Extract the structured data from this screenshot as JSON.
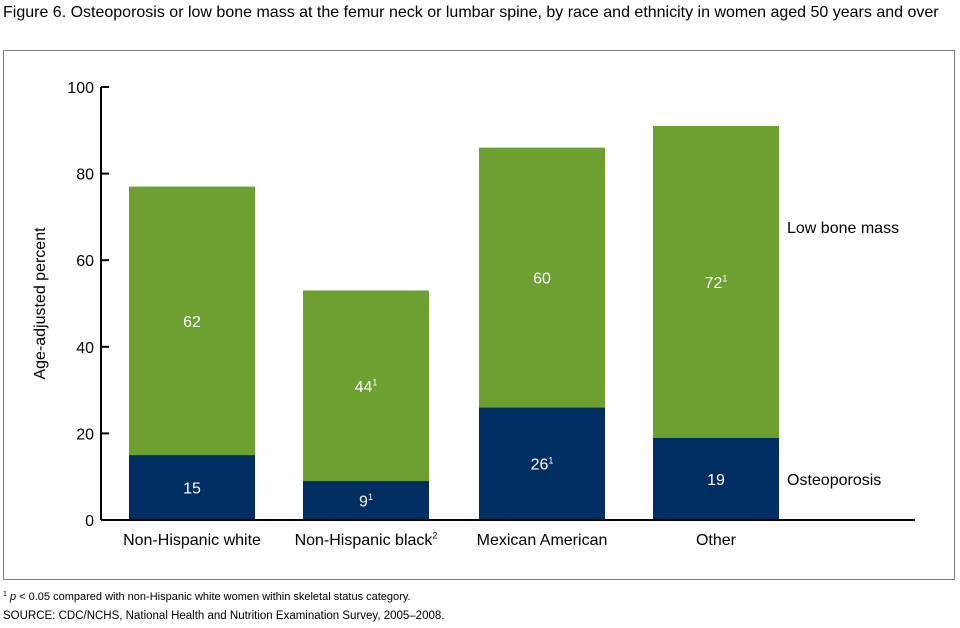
{
  "figure": {
    "title": "Figure 6. Osteoporosis or low bone mass at the femur neck or lumbar spine, by race and ethnicity in women aged 50 years and over",
    "footnote_mark": "1",
    "footnote_p": "p",
    "footnote_text": " < 0.05 compared with non-Hispanic white women within skeletal status category.",
    "source": "SOURCE: CDC/NCHS, National Health and Nutrition Examination Survey, 2005–2008."
  },
  "chart_data": {
    "type": "bar",
    "stacked": true,
    "title": "",
    "xlabel": "",
    "ylabel": "Age-adjusted percent",
    "ylim": [
      0,
      100
    ],
    "yticks": [
      0,
      20,
      40,
      60,
      80,
      100
    ],
    "grid": false,
    "categories": [
      {
        "label": "Non-Hispanic white",
        "sup": ""
      },
      {
        "label": "Non-Hispanic black",
        "sup": "2"
      },
      {
        "label": "Mexican American",
        "sup": ""
      },
      {
        "label": "Other",
        "sup": ""
      }
    ],
    "series": [
      {
        "name": "Osteoporosis",
        "color": "#002d62",
        "values": [
          15,
          9,
          26,
          19
        ],
        "sups": [
          "",
          "1",
          "1",
          ""
        ]
      },
      {
        "name": "Low bone mass",
        "color": "#6d9f31",
        "values": [
          62,
          44,
          60,
          72
        ],
        "sups": [
          "",
          "1",
          "",
          "1"
        ]
      }
    ],
    "legend": "right, beside last bar"
  }
}
